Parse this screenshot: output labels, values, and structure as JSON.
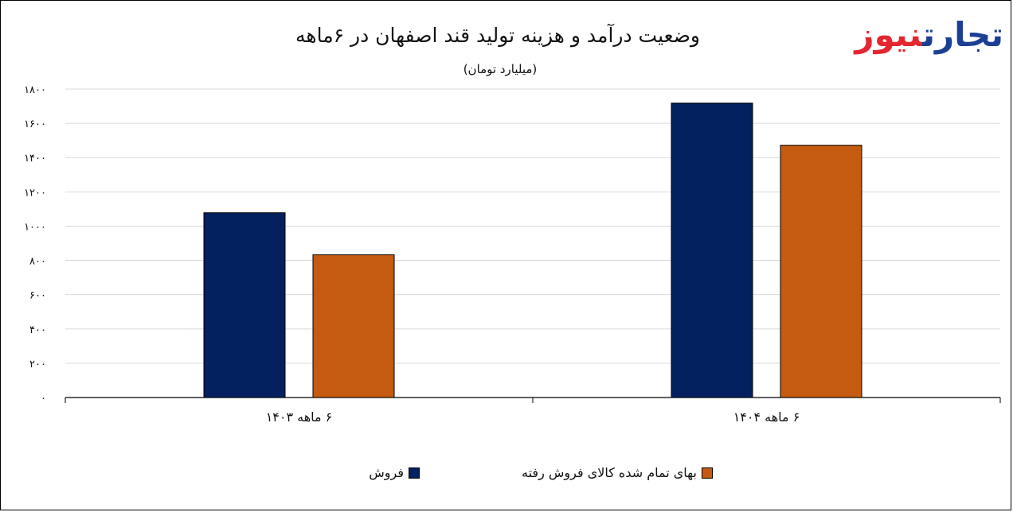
{
  "header": {
    "title": "وضعیت درآمد و هزینه تولید قند اصفهان در ۶ماهه",
    "subtitle": "(میلیارد تومان)"
  },
  "logo": {
    "part1": "تجارت",
    "part2": "نیوز",
    "color1": "#1b3f94",
    "color2": "#e3262f"
  },
  "chart_data": {
    "type": "bar",
    "title": "وضعیت درآمد و هزینه تولید قند اصفهان در ۶ماهه",
    "subtitle": "(میلیارد تومان)",
    "categories": [
      "۶ ماهه ۱۴۰۳",
      "۶ ماهه ۱۴۰۴"
    ],
    "series": [
      {
        "name": "فروش",
        "color": "#03205f",
        "values": [
          1078,
          1718
        ]
      },
      {
        "name": "بهای تمام شده کالای فروش رفته",
        "color": "#c55a11",
        "values": [
          833,
          1472
        ]
      }
    ],
    "ylim": [
      0,
      1800
    ],
    "yticks": [
      {
        "value": 0,
        "label": "۰"
      },
      {
        "value": 200,
        "label": "۲۰۰"
      },
      {
        "value": 400,
        "label": "۴۰۰"
      },
      {
        "value": 600,
        "label": "۶۰۰"
      },
      {
        "value": 800,
        "label": "۸۰۰"
      },
      {
        "value": 1000,
        "label": "۱۰۰۰"
      },
      {
        "value": 1200,
        "label": "۱۲۰۰"
      },
      {
        "value": 1400,
        "label": "۱۴۰۰"
      },
      {
        "value": 1600,
        "label": "۱۶۰۰"
      },
      {
        "value": 1800,
        "label": "۱۸۰۰"
      }
    ],
    "grid": true,
    "legend_position": "bottom"
  }
}
